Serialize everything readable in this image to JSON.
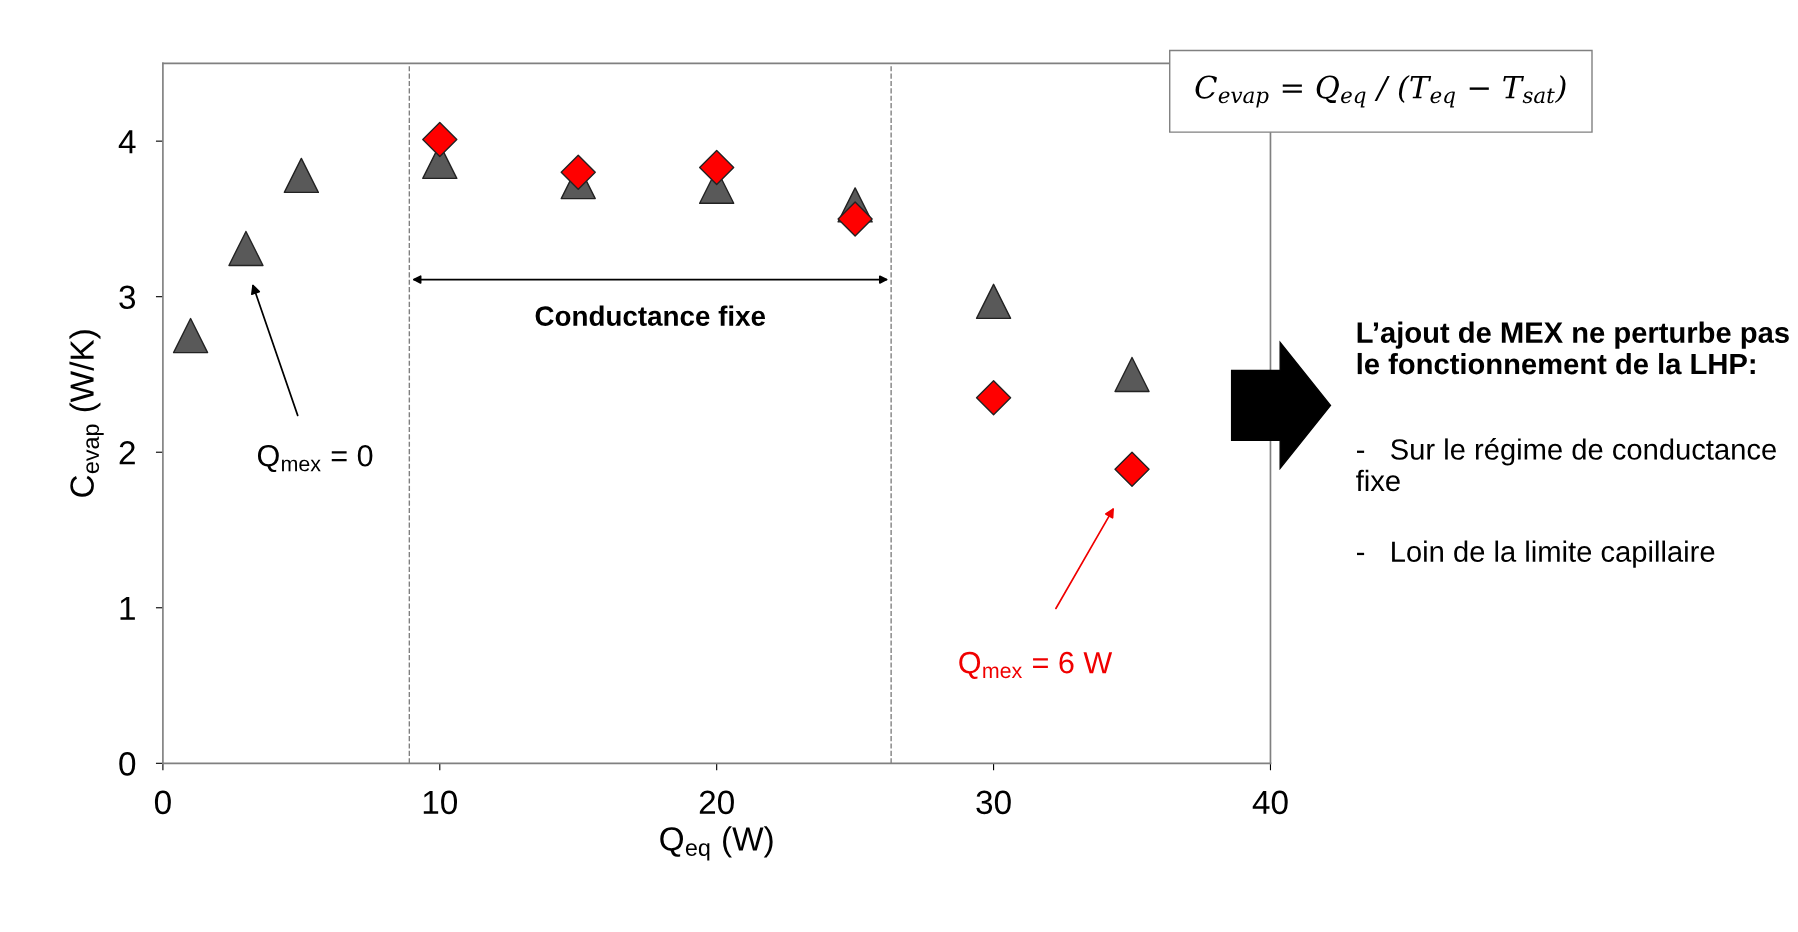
{
  "chart_data": {
    "type": "scatter",
    "xlabel": "Q$_{eq}$ (W)",
    "ylabel": "C$_{evap}$ (W/K)",
    "xlim": [
      0,
      40
    ],
    "xticks": [
      0,
      10,
      20,
      30,
      40
    ],
    "ylim": [
      0,
      4.5
    ],
    "yticks": [
      0,
      1,
      2,
      3,
      4
    ],
    "grid": false,
    "series": [
      {
        "color": "#595959",
        "marker": "triangle",
        "x": [
          1,
          3,
          5,
          10,
          15,
          20,
          25,
          30,
          35
        ],
        "values": [
          2.75,
          3.31,
          3.78,
          3.87,
          3.74,
          3.71,
          3.59,
          2.97,
          2.5
        ]
      },
      {
        "color": "#ff0000",
        "marker": "diamond",
        "x": [
          10,
          15,
          20,
          25,
          30,
          35
        ],
        "values": [
          4.01,
          3.8,
          3.83,
          3.5,
          2.35,
          1.89
        ]
      }
    ],
    "ref_lines": [
      {
        "axis": "x",
        "value": 8.9,
        "color": "#808080",
        "line_style": "dashed"
      },
      {
        "axis": "x",
        "value": 26.3,
        "color": "#808080",
        "line_style": "dashed"
      }
    ],
    "annotations": [
      "Conductance fixe",
      "Q$_{mex}$ = 0",
      "Q$_{mex}$ = 6 W",
      "C$_{evap}$ = Q$_{eq}$ / (T$_{eq}$ − T$_{sat}$)",
      "L’ajout de MEX ne perturbe pas le fonctionnement de la LHP:",
      "-   Sur le régime de conductance fixe",
      "-   Loin de la limite capillaire"
    ]
  }
}
